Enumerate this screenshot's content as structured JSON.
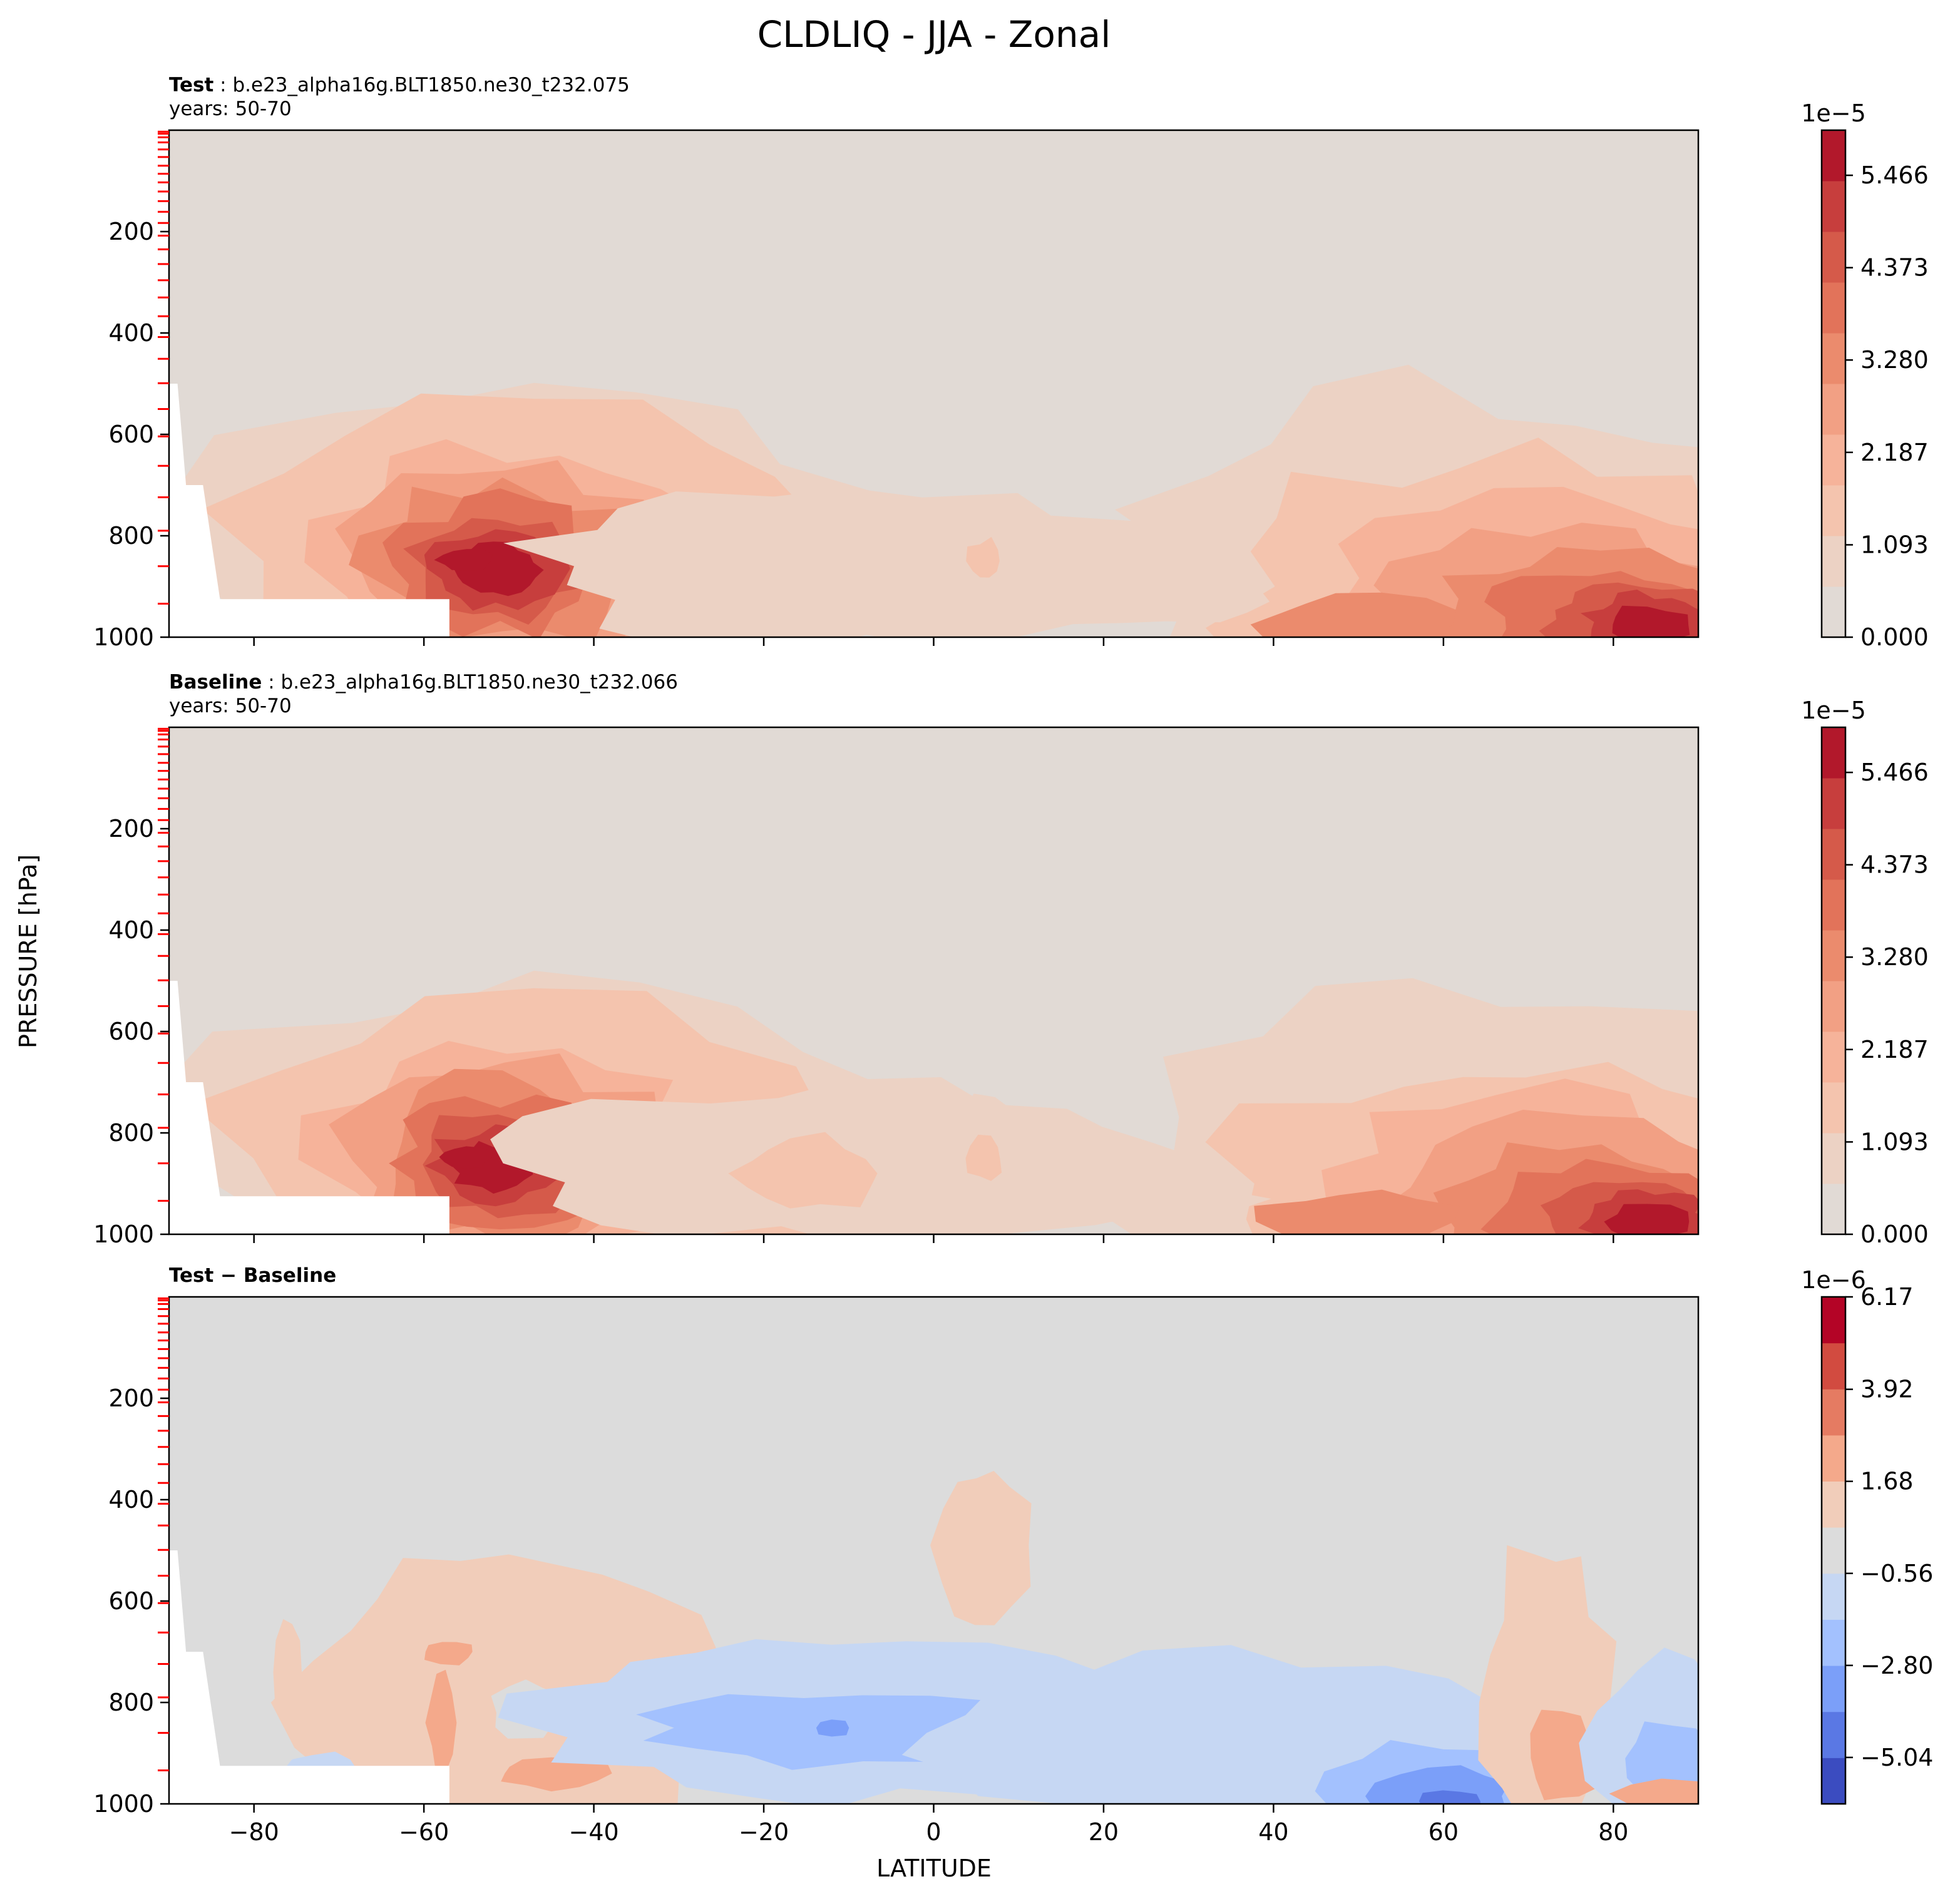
{
  "figure": {
    "title": "CLDLIQ - JJA - Zonal",
    "ylabel": "PRESSURE [hPa]",
    "xlabel": "LATITUDE"
  },
  "colors": {
    "background_gray": "#e1dad5",
    "diff_gray": "#dcdcdc",
    "seq_levels": [
      "#e1dad5",
      "#ecd2c4",
      "#f4c4ae",
      "#f6b39a",
      "#f2a084",
      "#eb8b6d",
      "#e2735a",
      "#d55a4a",
      "#c73e3d",
      "#b2182b"
    ],
    "div_levels": [
      "#3b4cc0",
      "#5a78e4",
      "#7b9ff9",
      "#a3c1fe",
      "#c6d7f3",
      "#dcdcdc",
      "#f1cdba",
      "#f4a98b",
      "#e57b62",
      "#d24b40",
      "#b40426"
    ],
    "missing_fill": "#ffffff",
    "red_ticks": "#ff0000"
  },
  "chart_data": [
    {
      "type": "contourf",
      "panel": "test",
      "title_bold": "Test",
      "title_rest": ": b.e23_alpha16g.BLT1850.ne30_t232.075",
      "subtitle": "years: 50-70",
      "xlim": [
        -90,
        90
      ],
      "ylim": [
        1000,
        0
      ],
      "yticks": [
        200,
        400,
        600,
        800,
        1000
      ],
      "yticklabels": [
        "200",
        "400",
        "600",
        "800",
        "1000"
      ],
      "xticks": [
        -80,
        -60,
        -40,
        -20,
        0,
        20,
        40,
        60,
        80
      ],
      "colorbar": {
        "exponent": "1e−5",
        "ticks": [
          0.0,
          1.093,
          2.187,
          3.28,
          4.373,
          5.466
        ],
        "ticklabels": [
          "0.000",
          "1.093",
          "2.187",
          "3.280",
          "4.373",
          "5.466"
        ],
        "range": [
          0,
          6.0
        ]
      },
      "features": [
        {
          "name": "southern-ocean-max",
          "center": [
            -57,
            850
          ],
          "peak": 5.0
        },
        {
          "name": "arctic-low-cloud-max",
          "center": [
            78,
            950
          ],
          "peak": 6.0
        },
        {
          "name": "tropical-low-cloud",
          "center": [
            5,
            850
          ],
          "peak": 1.7
        }
      ]
    },
    {
      "type": "contourf",
      "panel": "baseline",
      "title_bold": "Baseline",
      "title_rest": ": b.e23_alpha16g.BLT1850.ne30_t232.066",
      "subtitle": "years: 50-70",
      "xlim": [
        -90,
        90
      ],
      "ylim": [
        1000,
        0
      ],
      "yticks": [
        200,
        400,
        600,
        800,
        1000
      ],
      "yticklabels": [
        "200",
        "400",
        "600",
        "800",
        "1000"
      ],
      "xticks": [
        -80,
        -60,
        -40,
        -20,
        0,
        20,
        40,
        60,
        80
      ],
      "colorbar": {
        "exponent": "1e−5",
        "ticks": [
          0.0,
          1.093,
          2.187,
          3.28,
          4.373,
          5.466
        ],
        "ticklabels": [
          "0.000",
          "1.093",
          "2.187",
          "3.280",
          "4.373",
          "5.466"
        ],
        "range": [
          0,
          6.0
        ]
      },
      "features": [
        {
          "name": "southern-ocean-max",
          "center": [
            -57,
            850
          ],
          "peak": 5.0
        },
        {
          "name": "arctic-low-cloud-max",
          "center": [
            80,
            960
          ],
          "peak": 5.8
        },
        {
          "name": "tropical-low-cloud",
          "center": [
            5,
            850
          ],
          "peak": 1.7
        }
      ]
    },
    {
      "type": "contourf",
      "panel": "difference",
      "title_bold_a": "Test",
      "title_op": "−",
      "title_bold_b": "Baseline",
      "xlim": [
        -90,
        90
      ],
      "ylim": [
        1000,
        0
      ],
      "yticks": [
        200,
        400,
        600,
        800,
        1000
      ],
      "yticklabels": [
        "200",
        "400",
        "600",
        "800",
        "1000"
      ],
      "xticks": [
        -80,
        -60,
        -40,
        -20,
        0,
        20,
        40,
        60,
        80
      ],
      "xticklabels": [
        "−80",
        "−60",
        "−40",
        "−20",
        "0",
        "20",
        "40",
        "60",
        "80"
      ],
      "colorbar": {
        "exponent": "1e−6",
        "ticks": [
          6.17,
          3.92,
          1.68,
          -0.56,
          -2.8,
          -5.04
        ],
        "ticklabels": [
          "6.17",
          "3.92",
          "1.68",
          "−0.56",
          "−2.80",
          "−5.04"
        ],
        "range": [
          -6.17,
          6.17
        ]
      },
      "features": [
        {
          "name": "positive-southern-midlat",
          "center": [
            -50,
            800
          ],
          "sign": "+"
        },
        {
          "name": "negative-tropics",
          "center": [
            -10,
            840
          ],
          "sign": "-"
        },
        {
          "name": "negative-subpolar-north",
          "center": [
            60,
            980
          ],
          "sign": "-"
        },
        {
          "name": "positive-upper-equatorial",
          "center": [
            5,
            490
          ],
          "sign": "+"
        }
      ]
    }
  ]
}
